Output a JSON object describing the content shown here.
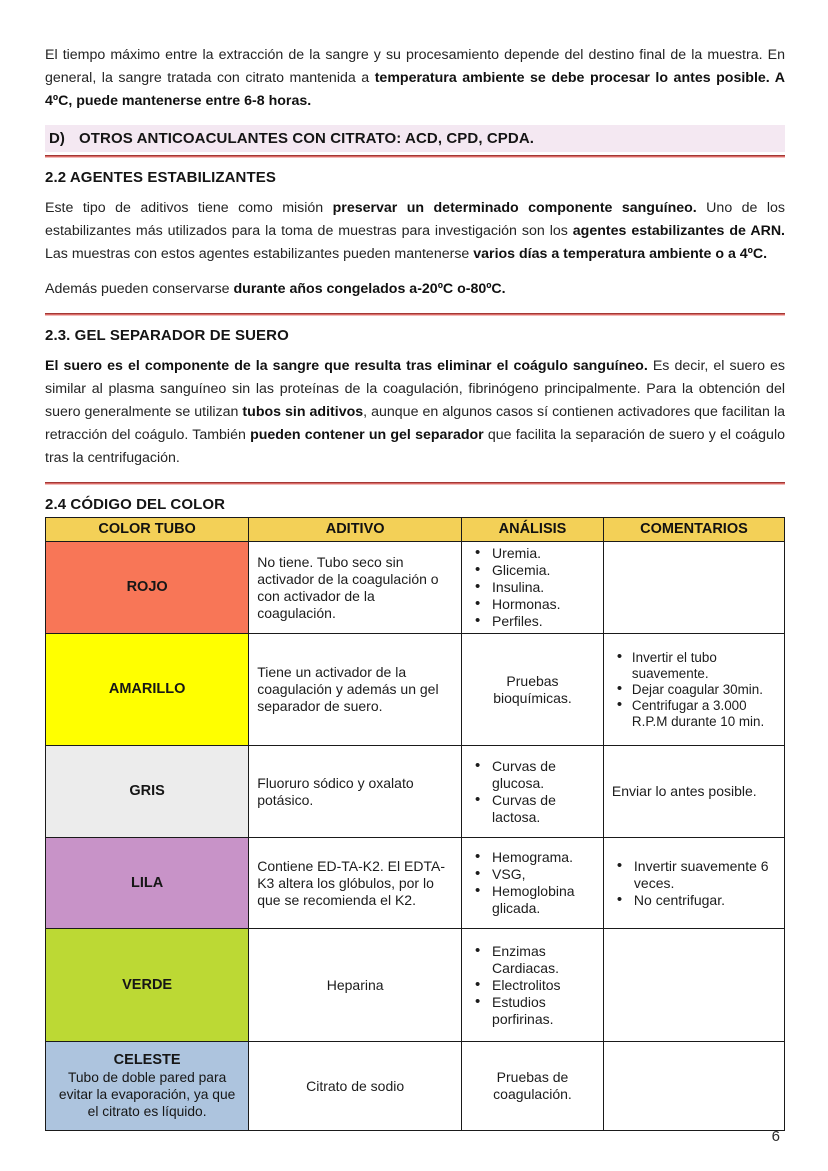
{
  "colors": {
    "rule_red": "#C0504D",
    "heading_d_bg": "#F4E8F2",
    "table_header_bg": "#F3D057"
  },
  "intro": {
    "normal": "El tiempo máximo entre la extracción de la sangre y su procesamiento depende del destino final de la muestra. En general, la sangre tratada con citrato mantenida a ",
    "bold": "temperatura ambiente se debe procesar lo antes posible. A 4ºC, puede mantenerse entre 6-8 horas."
  },
  "heading_d": {
    "label": "D)",
    "text": "OTROS ANTICOACULANTES CON CITRATO: ACD, CPD, CPDA."
  },
  "s22": {
    "title": "2.2 AGENTES ESTABILIZANTES",
    "p1_a": "Este tipo de aditivos tiene como misión ",
    "p1_b": "preservar un determinado componente sanguíneo.",
    "p1_c": " Uno de los estabilizantes más utilizados para la toma de muestras para investigación son los ",
    "p1_d": "agentes estabilizantes de ARN.",
    "p1_e": " Las muestras con estos agentes estabilizantes pueden mantenerse ",
    "p1_f": "varios días a temperatura ambiente o a 4ºC.",
    "p2_a": "Además pueden conservarse ",
    "p2_b": "durante años congelados a-20ºC o-80ºC."
  },
  "s23": {
    "title": "2.3. GEL SEPARADOR DE SUERO",
    "p1_a": "El suero es el componente de la sangre que resulta tras eliminar el coágulo sanguíneo.",
    "p1_b": " Es decir, el suero es similar al plasma sanguíneo sin las proteínas de la coagulación, fibrinógeno principalmente. Para la obtención del suero generalmente se utilizan ",
    "p1_c": "tubos sin aditivos",
    "p1_d": ", aunque en algunos casos sí contienen activadores que facilitan la retracción del coágulo. También ",
    "p1_e": "pueden contener un gel separador",
    "p1_f": " que facilita la separación de suero y el coágulo tras la centrifugación."
  },
  "s24": {
    "title": "2.4 CÓDIGO DEL COLOR"
  },
  "table": {
    "headers": [
      "COLOR TUBO",
      "ADITIVO",
      "ANÁLISIS",
      "COMENTARIOS"
    ],
    "rows": [
      {
        "color_name": "ROJO",
        "color_hex": "#F87657",
        "aditivo": "No tiene. Tubo seco sin activador de la coagulación o con activador de la coagulación.",
        "analisis_bullets": [
          "Uremia.",
          "Glicemia.",
          "Insulina.",
          "Hormonas.",
          "Perfiles."
        ]
      },
      {
        "color_name": "AMARILLO",
        "color_hex": "#FFFF00",
        "aditivo": "Tiene un activador de la coagulación y además un gel separador de suero.",
        "analisis_text": "Pruebas bioquímicas.",
        "comentarios_bullets": [
          "Invertir el tubo suavemente.",
          "Dejar coagular 30min.",
          "Centrifugar a 3.000 R.P.M durante 10 min."
        ]
      },
      {
        "color_name": "GRIS",
        "color_hex": "#ECECEC",
        "aditivo": "Fluoruro sódico y oxalato potásico.",
        "analisis_bullets": [
          "Curvas de glucosa.",
          "Curvas de lactosa."
        ],
        "comentarios_text": "Enviar lo antes posible."
      },
      {
        "color_name": "LILA",
        "color_hex": "#C893C8",
        "aditivo": "Contiene ED-TA-K2. El EDTA-K3 altera los glóbulos, por lo que se recomienda el K2.",
        "analisis_bullets": [
          "Hemograma.",
          "VSG,",
          "Hemoglobina glicada."
        ],
        "comentarios_bullets": [
          "Invertir suavemente 6 veces.",
          "No centrifugar."
        ]
      },
      {
        "color_name": "VERDE",
        "color_hex": "#BCD934",
        "aditivo_center": "Heparina",
        "analisis_bullets": [
          "Enzimas Cardiacas.",
          "Electrolitos",
          "Estudios porfirinas."
        ]
      },
      {
        "color_name": "CELESTE",
        "color_desc": "Tubo de doble pared para evitar la evaporación, ya que el citrato es líquido.",
        "color_hex": "#ADC4DE",
        "aditivo_center": "Citrato de sodio",
        "analisis_text": "Pruebas de coagulación."
      }
    ]
  },
  "footer": {
    "page_number": "6"
  }
}
